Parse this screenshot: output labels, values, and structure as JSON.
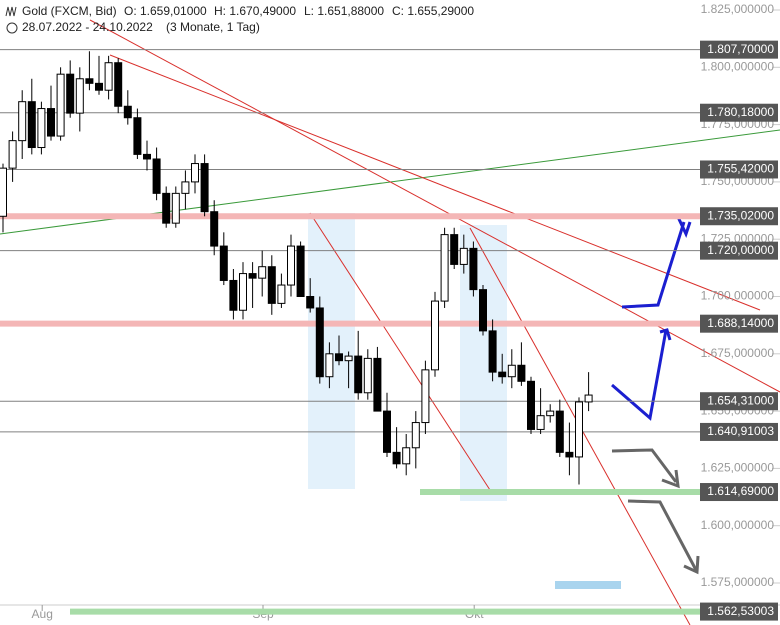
{
  "chart_data": {
    "type": "candlestick",
    "header": {
      "instrument": "Gold (FXCM, Bid)",
      "open": "O: 1.659,01000",
      "high": "H: 1.670,49000",
      "low": "L: 1.651,88000",
      "close": "C: 1.655,29000",
      "range": "28.07.2022 - 24.10.2022",
      "period": "(3 Monate, 1 Tag)"
    },
    "open": [
      1735,
      1756,
      1768,
      1785,
      1765,
      1782,
      1770,
      1797,
      1780,
      1795,
      1793,
      1790,
      1802,
      1783,
      1778,
      1762,
      1760,
      1745,
      1732,
      1745,
      1750,
      1758,
      1737,
      1722,
      1707,
      1694,
      1710,
      1708,
      1713,
      1697,
      1705,
      1722,
      1700,
      1695,
      1665,
      1675,
      1672,
      1674,
      1658,
      1673,
      1650,
      1632,
      1627,
      1634,
      1645,
      1668,
      1698,
      1727,
      1714,
      1721,
      1703,
      1685,
      1667,
      1665,
      1670,
      1663,
      1642,
      1648,
      1650,
      1632,
      1630,
      1654
    ],
    "high": [
      1758,
      1772,
      1790,
      1795,
      1785,
      1792,
      1800,
      1803,
      1800,
      1807,
      1805,
      1805,
      1804,
      1790,
      1782,
      1768,
      1765,
      1748,
      1748,
      1755,
      1762,
      1762,
      1742,
      1728,
      1712,
      1715,
      1715,
      1720,
      1718,
      1710,
      1727,
      1724,
      1708,
      1700,
      1680,
      1683,
      1676,
      1685,
      1677,
      1678,
      1658,
      1643,
      1640,
      1650,
      1672,
      1702,
      1730,
      1730,
      1727,
      1724,
      1705,
      1690,
      1675,
      1677,
      1680,
      1665,
      1660,
      1653,
      1655,
      1645,
      1656,
      1667
    ],
    "low": [
      1728,
      1750,
      1760,
      1762,
      1762,
      1768,
      1768,
      1778,
      1772,
      1790,
      1788,
      1786,
      1780,
      1775,
      1760,
      1755,
      1742,
      1730,
      1730,
      1738,
      1745,
      1735,
      1718,
      1705,
      1690,
      1690,
      1695,
      1700,
      1692,
      1695,
      1700,
      1700,
      1693,
      1662,
      1660,
      1670,
      1660,
      1655,
      1655,
      1650,
      1630,
      1625,
      1622,
      1625,
      1640,
      1665,
      1695,
      1712,
      1710,
      1700,
      1683,
      1663,
      1662,
      1660,
      1661,
      1640,
      1640,
      1645,
      1630,
      1622,
      1618,
      1650
    ],
    "close": [
      1756,
      1768,
      1785,
      1765,
      1782,
      1770,
      1797,
      1780,
      1795,
      1793,
      1790,
      1802,
      1783,
      1778,
      1762,
      1760,
      1745,
      1732,
      1745,
      1750,
      1758,
      1737,
      1722,
      1707,
      1694,
      1710,
      1708,
      1713,
      1697,
      1705,
      1722,
      1700,
      1695,
      1665,
      1675,
      1672,
      1674,
      1658,
      1673,
      1650,
      1632,
      1627,
      1634,
      1645,
      1668,
      1698,
      1727,
      1714,
      1721,
      1703,
      1685,
      1667,
      1665,
      1670,
      1663,
      1642,
      1648,
      1650,
      1632,
      1630,
      1654,
      1657
    ],
    "ylim": [
      1562,
      1827
    ],
    "yticks": [
      {
        "value": 1825,
        "label": "1.825,000000"
      },
      {
        "value": 1800,
        "label": "1.800,000000"
      },
      {
        "value": 1775,
        "label": "1.775,000000"
      },
      {
        "value": 1750,
        "label": "1.750,000000"
      },
      {
        "value": 1725,
        "label": "1.725,000000"
      },
      {
        "value": 1700,
        "label": "1.700,000000"
      },
      {
        "value": 1675,
        "label": "1.675,000000"
      },
      {
        "value": 1650,
        "label": "1.650,000000"
      },
      {
        "value": 1625,
        "label": "1.625,000000"
      },
      {
        "value": 1600,
        "label": "1.600,000000"
      },
      {
        "value": 1575,
        "label": "1.575,000000"
      }
    ],
    "xticks": [
      {
        "value": 2,
        "label": "Aug"
      },
      {
        "value": 25,
        "label": "Sep"
      },
      {
        "value": 47,
        "label": "Okt"
      }
    ],
    "levels": [
      {
        "value": 1807.7,
        "label": "1.807,70000",
        "color": "#808080"
      },
      {
        "value": 1780.18,
        "label": "1.780,18000",
        "color": "#808080"
      },
      {
        "value": 1755.42,
        "label": "1.755,42000",
        "color": "#808080"
      },
      {
        "value": 1735.02,
        "label": "1.735,02000",
        "color": "#f4b6b6"
      },
      {
        "value": 1720,
        "label": "1.720,00000",
        "color": "#808080"
      },
      {
        "value": 1688.14,
        "label": "1.688,14000",
        "color": "#f4b6b6"
      },
      {
        "value": 1654.31,
        "label": "1.654,31000",
        "color": "#808080"
      },
      {
        "value": 1640.91,
        "label": "1.640,91003",
        "color": "#808080"
      },
      {
        "value": 1614.69,
        "label": "1.614,69000",
        "color": "#a8dca8"
      },
      {
        "value": 1562.53,
        "label": "1.562,53003",
        "color": "#a8dca8"
      }
    ]
  }
}
